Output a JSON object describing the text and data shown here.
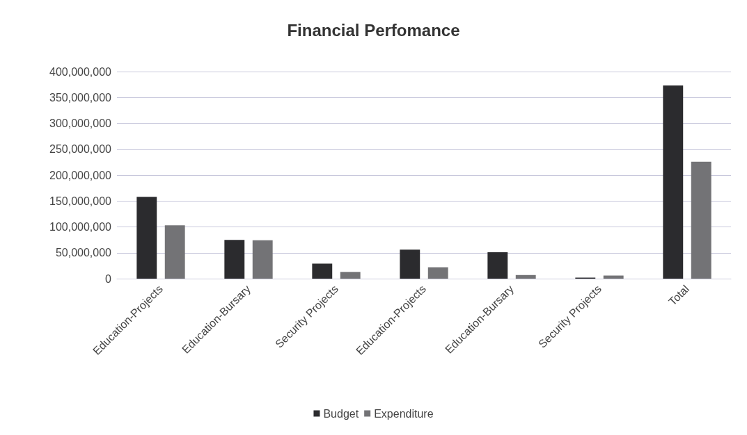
{
  "chart_data": {
    "type": "bar",
    "title": "Financial Perfomance",
    "categories": [
      "Education-Projects",
      "Education-Bursary",
      "Security Projects",
      "Education-Projects",
      "Education-Bursary",
      "Security Projects",
      "Total"
    ],
    "series": [
      {
        "name": "Budget",
        "color": "#2b2b2e",
        "values": [
          158000000,
          75000000,
          29000000,
          56000000,
          51000000,
          2000000,
          373000000
        ]
      },
      {
        "name": "Expenditure",
        "color": "#737376",
        "values": [
          103000000,
          74000000,
          13000000,
          22000000,
          7000000,
          6000000,
          226000000
        ]
      }
    ],
    "ylim": [
      0,
      400000000
    ],
    "yticks": [
      0,
      {
        "value": 50000000,
        "label": "50,000,000"
      },
      {
        "value": 100000000,
        "label": "100,000,000"
      },
      {
        "value": 150000000,
        "label": "150,000,000"
      },
      {
        "value": 200000000,
        "label": "200,000,000"
      },
      {
        "value": 250000000,
        "label": "250,000,000"
      },
      {
        "value": 300000000,
        "label": "300,000,000"
      },
      {
        "value": 350000000,
        "label": "350,000,000"
      },
      {
        "value": 400000000,
        "label": "400,000,000"
      }
    ],
    "grid": "y",
    "legend": "bottom"
  }
}
